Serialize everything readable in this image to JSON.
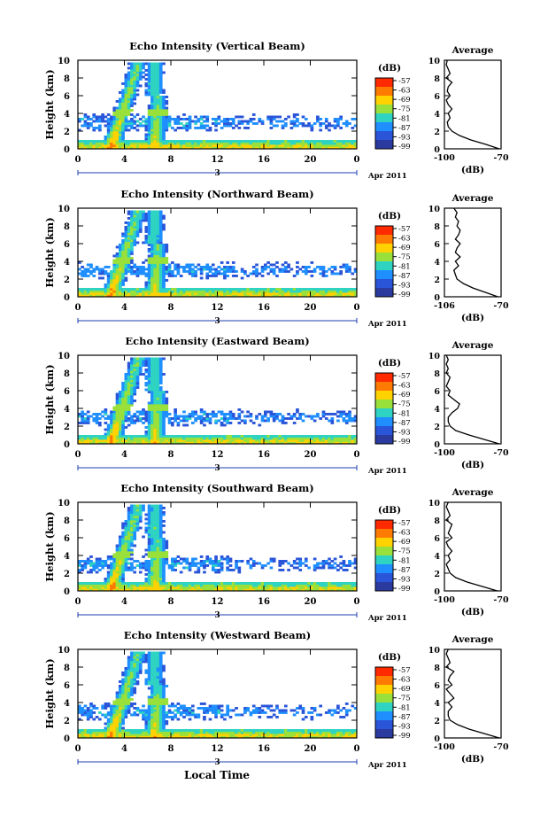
{
  "figure": {
    "x_axis_label": "Local Time",
    "date_label": "Apr 2011",
    "day_marker": "3",
    "colorbar_unit": "(dB)",
    "colorbar_ticks": [
      "-57",
      "-63",
      "-69",
      "-75",
      "-81",
      "-87",
      "-93",
      "-99"
    ],
    "colorbar_colors": [
      "#ff2a00",
      "#ff7a00",
      "#ffd200",
      "#9ae03a",
      "#2ed3c2",
      "#1f8fff",
      "#2a55d8",
      "#2b3a9e"
    ],
    "avg_title": "Average",
    "avg_xlabel": "(dB)"
  },
  "chart_data": [
    {
      "type": "heatmap",
      "title": "Echo Intensity (Vertical Beam)",
      "ylabel": "Height (km)",
      "xlim": [
        0,
        24
      ],
      "ylim": [
        0,
        10
      ],
      "xticks": [
        "0",
        "4",
        "8",
        "12",
        "16",
        "20",
        "0"
      ],
      "yticks": [
        "0",
        "2",
        "4",
        "6",
        "8",
        "10"
      ],
      "colorbar_range_db": [
        -99,
        -57
      ],
      "average_profile": {
        "xlabel": "(dB)",
        "xticks": [
          "-100",
          "-70"
        ],
        "height_km": [
          0,
          0.5,
          1,
          1.5,
          2,
          2.5,
          3,
          3.5,
          4,
          4.5,
          5,
          5.5,
          6,
          6.5,
          7,
          7.5,
          8,
          8.5,
          9,
          9.5,
          10
        ],
        "echo_db": [
          -71,
          -78,
          -86,
          -92,
          -96,
          -98,
          -98.5,
          -97,
          -98,
          -96,
          -98,
          -99,
          -97,
          -98.5,
          -98,
          -96,
          -99,
          -97,
          -98,
          -99,
          -98.5
        ]
      }
    },
    {
      "type": "heatmap",
      "title": "Echo Intensity (Northward Beam)",
      "ylabel": "Height (km)",
      "xlim": [
        0,
        24
      ],
      "ylim": [
        0,
        10
      ],
      "xticks": [
        "0",
        "4",
        "8",
        "12",
        "16",
        "20",
        "0"
      ],
      "yticks": [
        "0",
        "2",
        "4",
        "6",
        "8",
        "10"
      ],
      "colorbar_range_db": [
        -99,
        -57
      ],
      "average_profile": {
        "xlabel": "(dB)",
        "xticks": [
          "-106",
          "-70"
        ],
        "height_km": [
          0,
          0.5,
          1,
          1.5,
          2,
          2.5,
          3,
          3.5,
          4,
          4.5,
          5,
          5.5,
          6,
          6.5,
          7,
          7.5,
          8,
          8.5,
          9,
          9.5,
          10
        ],
        "echo_db": [
          -72,
          -80,
          -88,
          -94,
          -98,
          -99,
          -100,
          -97,
          -99,
          -96,
          -99,
          -98,
          -96,
          -99,
          -97,
          -96,
          -98,
          -97,
          -99,
          -98,
          -100
        ]
      }
    },
    {
      "type": "heatmap",
      "title": "Echo Intensity (Eastward Beam)",
      "ylabel": "Height (km)",
      "xlim": [
        0,
        24
      ],
      "ylim": [
        0,
        10
      ],
      "xticks": [
        "0",
        "4",
        "8",
        "12",
        "16",
        "20",
        "0"
      ],
      "yticks": [
        "0",
        "2",
        "4",
        "6",
        "8",
        "10"
      ],
      "colorbar_range_db": [
        -99,
        -57
      ],
      "average_profile": {
        "xlabel": "(dB)",
        "xticks": [
          "-100",
          "-70"
        ],
        "height_km": [
          0,
          0.5,
          1,
          1.5,
          2,
          2.5,
          3,
          3.5,
          4,
          4.5,
          5,
          5.5,
          6,
          6.5,
          7,
          7.5,
          8,
          8.5,
          9,
          9.5,
          10
        ],
        "echo_db": [
          -71,
          -79,
          -87,
          -94,
          -97,
          -98,
          -98,
          -96,
          -93,
          -92,
          -95,
          -98,
          -97,
          -99,
          -98,
          -97,
          -99,
          -98,
          -99,
          -98,
          -99
        ]
      }
    },
    {
      "type": "heatmap",
      "title": "Echo Intensity (Southward Beam)",
      "ylabel": "Height (km)",
      "xlim": [
        0,
        24
      ],
      "ylim": [
        0,
        10
      ],
      "xticks": [
        "0",
        "4",
        "8",
        "12",
        "16",
        "20",
        "0"
      ],
      "yticks": [
        "0",
        "2",
        "4",
        "6",
        "8",
        "10"
      ],
      "colorbar_range_db": [
        -99,
        -57
      ],
      "average_profile": {
        "xlabel": "(dB)",
        "xticks": [
          "-100",
          "-70"
        ],
        "height_km": [
          0,
          0.5,
          1,
          1.5,
          2,
          2.5,
          3,
          3.5,
          4,
          4.5,
          5,
          5.5,
          6,
          6.5,
          7,
          7.5,
          8,
          8.5,
          9,
          9.5,
          10
        ],
        "echo_db": [
          -72,
          -80,
          -88,
          -94,
          -97,
          -98,
          -99,
          -97,
          -98,
          -96,
          -98,
          -99,
          -96,
          -98,
          -97,
          -96,
          -99,
          -97,
          -98,
          -99,
          -98
        ]
      }
    },
    {
      "type": "heatmap",
      "title": "Echo Intensity (Westward Beam)",
      "ylabel": "Height (km)",
      "xlim": [
        0,
        24
      ],
      "ylim": [
        0,
        10
      ],
      "xticks": [
        "0",
        "4",
        "8",
        "12",
        "16",
        "20",
        "0"
      ],
      "yticks": [
        "0",
        "2",
        "4",
        "6",
        "8",
        "10"
      ],
      "colorbar_range_db": [
        -99,
        -57
      ],
      "average_profile": {
        "xlabel": "(dB)",
        "xticks": [
          "-100",
          "-70"
        ],
        "height_km": [
          0,
          0.5,
          1,
          1.5,
          2,
          2.5,
          3,
          3.5,
          4,
          4.5,
          5,
          5.5,
          6,
          6.5,
          7,
          7.5,
          8,
          8.5,
          9,
          9.5,
          10
        ],
        "echo_db": [
          -71,
          -79,
          -87,
          -93,
          -97,
          -98,
          -98,
          -96,
          -98,
          -95,
          -97,
          -99,
          -96,
          -98,
          -97,
          -95,
          -99,
          -97,
          -98,
          -99,
          -98
        ]
      }
    }
  ]
}
